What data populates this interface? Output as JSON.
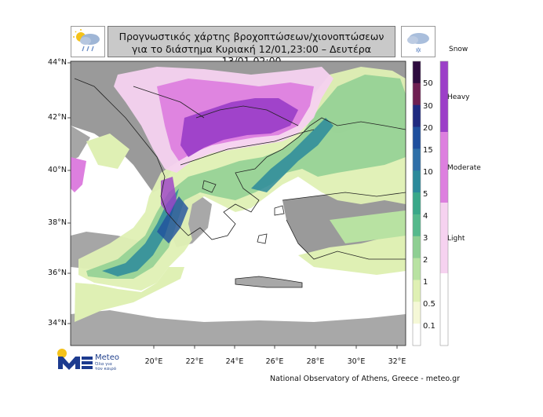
{
  "header": {
    "title_line1": "Προγνωστικός χάρτης βροχοπτώσεων/χιονοπτώσεων",
    "title_line2": "για το διάστημα Κυριακή 12/01,23:00 – Δευτέρα 13/01,02:00"
  },
  "icons": {
    "left": "rain-cloud-icon",
    "right": "snow-cloud-icon"
  },
  "map": {
    "lat_labels": [
      "44°N",
      "42°N",
      "40°N",
      "38°N",
      "36°N",
      "34°N"
    ],
    "lon_labels": [
      "20°E",
      "22°E",
      "24°E",
      "26°E",
      "28°E",
      "30°E",
      "32°E"
    ]
  },
  "rain_legend": {
    "ticks": [
      "50",
      "30",
      "20",
      "15",
      "10",
      "5",
      "4",
      "3",
      "2",
      "1",
      "0.5",
      "0.1"
    ],
    "colors": [
      "#2e0b3f",
      "#6e1f52",
      "#1f2a80",
      "#1f4f9e",
      "#2f6fa8",
      "#2c8a9b",
      "#3aa889",
      "#55b98c",
      "#8ecf92",
      "#b8e2a2",
      "#dff0b4",
      "#f5f8d7",
      "#ffffff"
    ]
  },
  "snow_legend": {
    "title": "Snow",
    "categories": [
      "Heavy",
      "Moderate",
      "Light"
    ],
    "colors": {
      "heavy": "#9c3fc8",
      "moderate": "#dd7fdf",
      "light": "#f6d2f0"
    }
  },
  "logo": {
    "name": "Meteo",
    "tagline": "Όλα για τον καιρό"
  },
  "source": "National Observatory of Athens, Greece - meteo.gr"
}
